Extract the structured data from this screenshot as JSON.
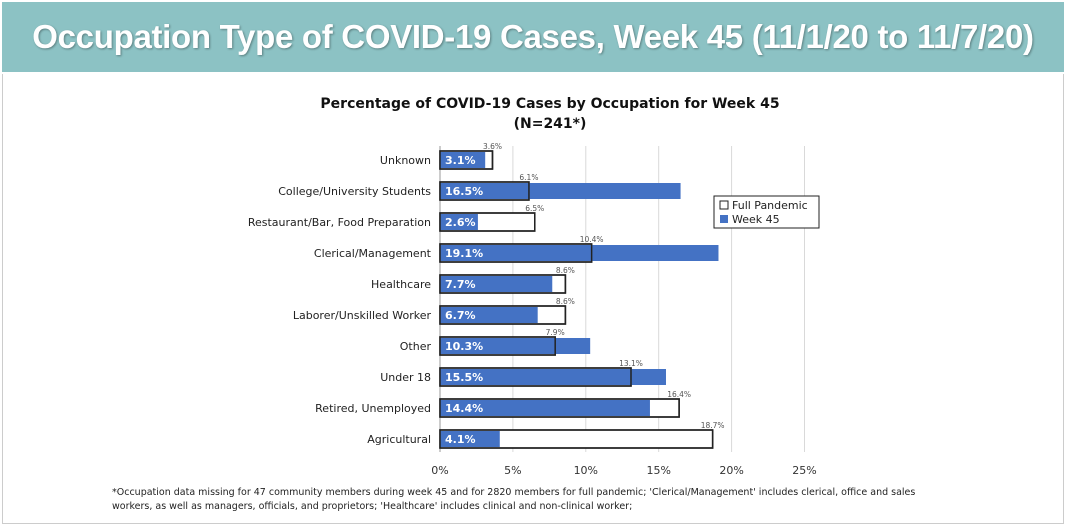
{
  "banner": {
    "title": "Occupation Type of COVID-19 Cases, Week 45 (11/1/20  to  11/7/20)"
  },
  "chart_data": {
    "type": "bar",
    "orientation": "horizontal",
    "title": "Percentage of COVID-19 Cases by Occupation for Week 45",
    "subtitle": "(N=241*)",
    "xlabel": "",
    "ylabel": "",
    "xlim": [
      0,
      25
    ],
    "xticks": [
      "0%",
      "5%",
      "10%",
      "15%",
      "20%",
      "25%"
    ],
    "grid": true,
    "legend_position": "right",
    "categories": [
      "Unknown",
      "College/University Students",
      "Restaurant/Bar, Food Preparation",
      "Clerical/Management",
      "Healthcare",
      "Laborer/Unskilled Worker",
      "Other",
      "Under 18",
      "Retired, Unemployed",
      "Agricultural"
    ],
    "series": [
      {
        "name": "Full Pandemic",
        "color": "#ffffff",
        "values": [
          3.6,
          6.1,
          6.5,
          10.4,
          8.6,
          8.6,
          7.9,
          13.1,
          16.4,
          18.7
        ],
        "labels": [
          "3.6%",
          "6.1%",
          "6.5%",
          "10.4%",
          "8.6%",
          "8.6%",
          "7.9%",
          "13.1%",
          "16.4%",
          "18.7%"
        ]
      },
      {
        "name": "Week 45",
        "color": "#4472c4",
        "values": [
          3.1,
          16.5,
          2.6,
          19.1,
          7.7,
          6.7,
          10.3,
          15.5,
          14.4,
          4.1
        ],
        "labels": [
          "3.1%",
          "16.5%",
          "2.6%",
          "19.1%",
          "7.7%",
          "6.7%",
          "10.3%",
          "15.5%",
          "14.4%",
          "4.1%"
        ]
      }
    ]
  },
  "footnote": {
    "line1": "*Occupation data missing for 47 community members during week 45 and for 2820 members for full pandemic;  'Clerical/Management' includes clerical, office and sales",
    "line2": "workers, as well as managers, officials, and proprietors; 'Healthcare' includes clinical and non-clinical worker;"
  }
}
